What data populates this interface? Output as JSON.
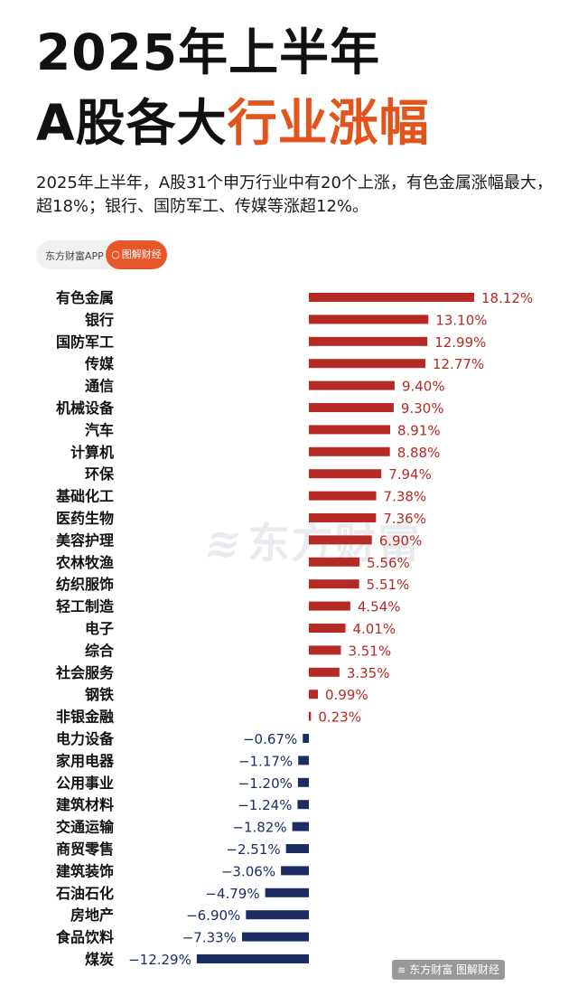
{
  "header": {
    "title_line1": "2025年上半年",
    "title_line2_prefix": "A股各大",
    "title_line2_accent": "行业涨幅",
    "description": "2025年上半年，A股31个申万行业中有20个上涨，有色金属涨幅最大，超18%；银行、国防军工、传媒等涨超12%。"
  },
  "badge": {
    "app_label": "东方财富APP",
    "tag_label": "图解财经",
    "tag_icon": "search-icon"
  },
  "watermark": {
    "text": "东方财富",
    "icon": "flame-logo-icon"
  },
  "footer": {
    "logo_text": "东方财富 图解财经",
    "logo_icon": "flame-logo-icon"
  },
  "colors": {
    "positive": "#b52a24",
    "negative": "#1c2d63",
    "accent": "#e2541c"
  },
  "chart_data": {
    "type": "bar",
    "orientation": "horizontal",
    "unit": "%",
    "categories": [
      "有色金属",
      "银行",
      "国防军工",
      "传媒",
      "通信",
      "机械设备",
      "汽车",
      "计算机",
      "环保",
      "基础化工",
      "医药生物",
      "美容护理",
      "农林牧渔",
      "纺织服饰",
      "轻工制造",
      "电子",
      "综合",
      "社会服务",
      "钢铁",
      "非银金融",
      "电力设备",
      "家用电器",
      "公用事业",
      "建筑材料",
      "交通运输",
      "商贸零售",
      "建筑装饰",
      "石油石化",
      "房地产",
      "食品饮料",
      "煤炭"
    ],
    "values": [
      18.12,
      13.1,
      12.99,
      12.77,
      9.4,
      9.3,
      8.91,
      8.88,
      7.94,
      7.38,
      7.36,
      6.9,
      5.56,
      5.51,
      4.54,
      4.01,
      3.51,
      3.35,
      0.99,
      0.23,
      -0.67,
      -1.17,
      -1.2,
      -1.24,
      -1.82,
      -2.51,
      -3.06,
      -4.79,
      -6.9,
      -7.33,
      -12.29
    ],
    "labels": [
      "18.12%",
      "13.10%",
      "12.99%",
      "12.77%",
      "9.40%",
      "9.30%",
      "8.91%",
      "8.88%",
      "7.94%",
      "7.38%",
      "7.36%",
      "6.90%",
      "5.56%",
      "5.51%",
      "4.54%",
      "4.01%",
      "3.51%",
      "3.35%",
      "0.99%",
      "0.23%",
      "−0.67%",
      "−1.17%",
      "−1.20%",
      "−1.24%",
      "−1.82%",
      "−2.51%",
      "−3.06%",
      "−4.79%",
      "−6.90%",
      "−7.33%",
      "−12.29%"
    ],
    "grid": false,
    "legend": "none"
  }
}
